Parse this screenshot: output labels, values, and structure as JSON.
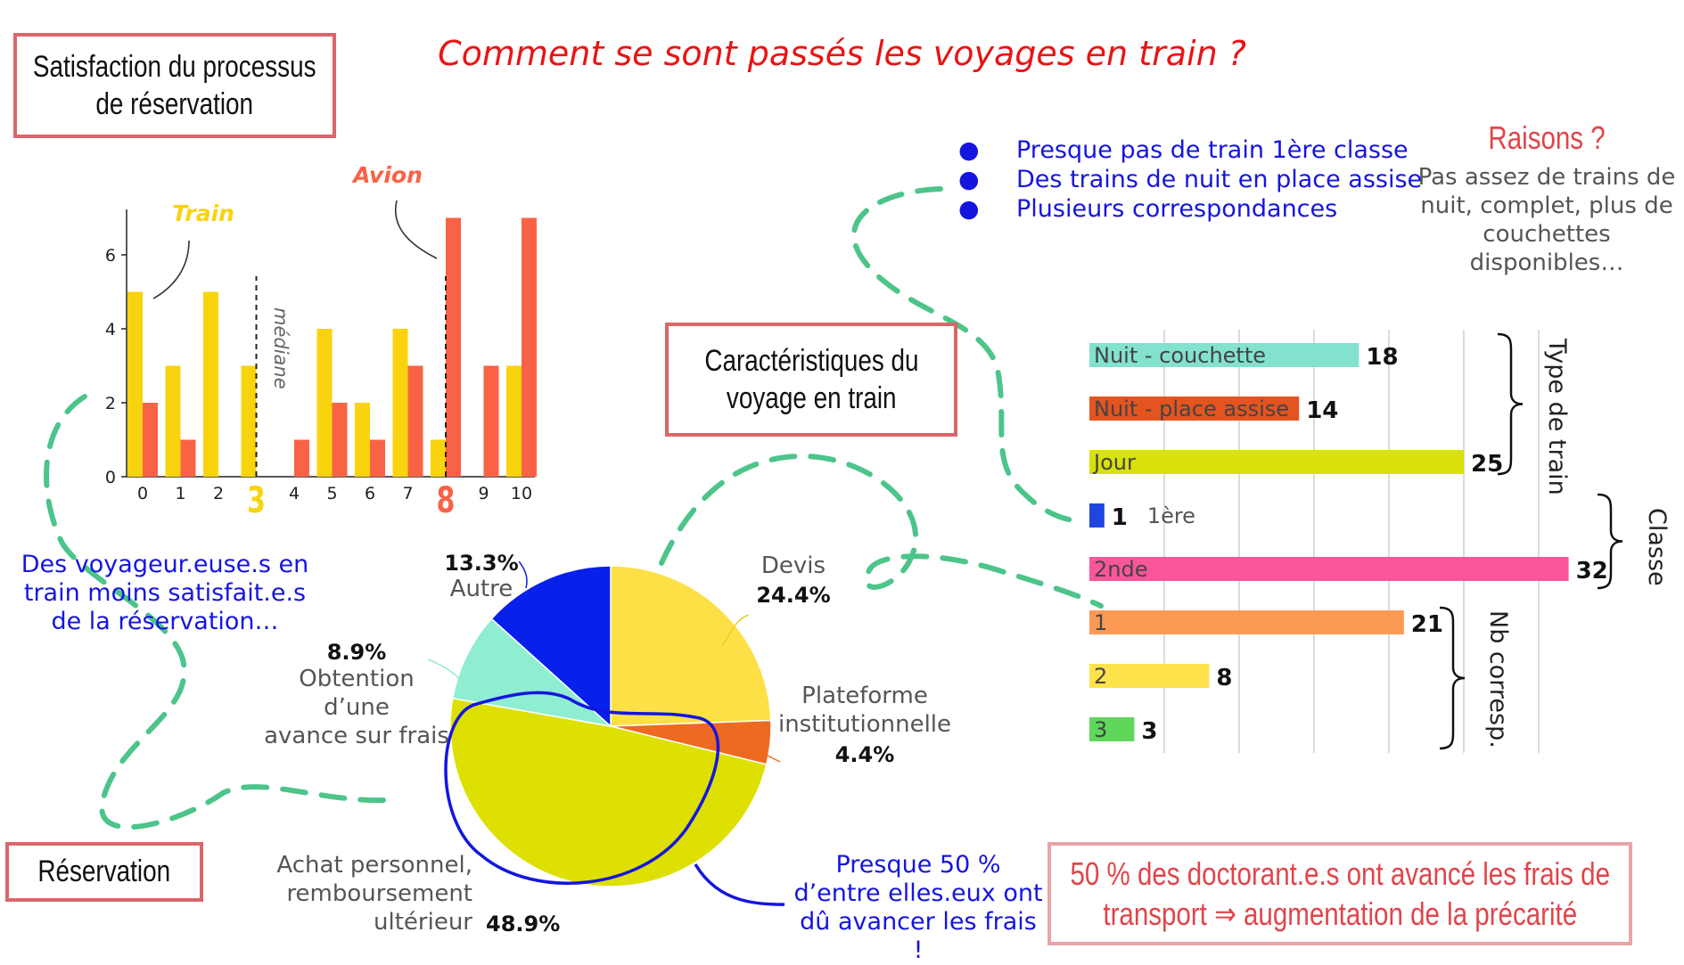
{
  "title": "Comment se sont passés les voyages en train ?",
  "boxes": {
    "satisfaction": [
      "Satisfaction du processus",
      "de réservation"
    ],
    "caracteristiques": [
      "Caractéristiques du",
      "voyage en train"
    ],
    "reservation": "Réservation",
    "conclusion": [
      "50 % des doctorant.e.s ont avancé les frais de",
      "transport ⇒ augmentation de la précarité"
    ]
  },
  "bullets": [
    "Presque pas de train 1ère classe",
    "Des trains de nuit en place assise",
    "Plusieurs correspondances"
  ],
  "raisons": {
    "title": "Raisons ?",
    "lines": [
      "Pas assez de trains de",
      "nuit, complet, plus de",
      "couchettes disponibles…"
    ]
  },
  "annotations": {
    "left": [
      "Des voyageur.euse.s en",
      "train moins satisfait.e.s",
      "de la réservation…"
    ],
    "bottom": [
      "Presque 50 %",
      "d’entre elles.eux ont",
      "dû avancer les frais !"
    ],
    "mediane": "médiane",
    "train_label": "Train",
    "avion_label": "Avion"
  },
  "colors": {
    "title_red": "#e81414",
    "box_border": "#d9666a",
    "annotation_blue": "#1515e0",
    "train": "#f9d30e",
    "avion": "#fa6246",
    "dash_green": "#4cc48a"
  },
  "chart_data": [
    {
      "type": "bar",
      "categories": [
        "0",
        "1",
        "2",
        "3",
        "4",
        "5",
        "6",
        "7",
        "8",
        "9",
        "10"
      ],
      "series": [
        {
          "name": "Train",
          "color": "#f9d30e",
          "values": [
            5,
            3,
            5,
            3,
            0,
            4,
            2,
            4,
            1,
            0,
            3
          ]
        },
        {
          "name": "Avion",
          "color": "#fa6246",
          "values": [
            2,
            1,
            0,
            0,
            1,
            2,
            1,
            3,
            7,
            3,
            7
          ]
        }
      ],
      "ylim": [
        0,
        7
      ],
      "yticks": [
        "0",
        "2",
        "4",
        "6"
      ],
      "medians": {
        "Train": 3,
        "Avion": 8
      },
      "highlighted_ticks": {
        "3": "#f9d30e",
        "8": "#fa6246"
      }
    },
    {
      "type": "pie",
      "slices": [
        {
          "label": "Devis",
          "value": 24.4,
          "text": "24.4%",
          "color": "#fde046"
        },
        {
          "label": "Plateforme institutionnelle",
          "value": 4.4,
          "text": "4.4%",
          "color": "#ee6a20"
        },
        {
          "label": "Achat personnel, remboursement ultérieur",
          "value": 48.9,
          "text": "48.9%",
          "color": "#dde000"
        },
        {
          "label": "Obtention d’une avance sur frais",
          "value": 8.9,
          "text": "8.9%",
          "color": "#8fedd2"
        },
        {
          "label": "Autre",
          "value": 13.3,
          "text": "13.3%",
          "color": "#0820ec"
        }
      ]
    },
    {
      "type": "bar",
      "orientation": "horizontal",
      "bars": [
        {
          "label": "Nuit - couchette",
          "value": 18,
          "color": "#82e2cd",
          "group": "Type de train"
        },
        {
          "label": "Nuit - place assise",
          "value": 14,
          "color": "#e4541f",
          "group": "Type de train"
        },
        {
          "label": "Jour",
          "value": 25,
          "color": "#d9e10a",
          "group": "Type de train"
        },
        {
          "label": "1ère",
          "value": 1,
          "color": "#2046e0",
          "group": "Classe"
        },
        {
          "label": "2nde",
          "value": 32,
          "color": "#f9579a",
          "group": "Classe"
        },
        {
          "label": "1",
          "value": 21,
          "color": "#fb9a55",
          "group": "Nb corresp."
        },
        {
          "label": "2",
          "value": 8,
          "color": "#fde24c",
          "group": "Nb corresp."
        },
        {
          "label": "3",
          "value": 3,
          "color": "#5fd75b",
          "group": "Nb corresp."
        }
      ],
      "groups": [
        "Type de train",
        "Classe",
        "Nb corresp."
      ],
      "xlim": [
        0,
        32
      ]
    }
  ]
}
